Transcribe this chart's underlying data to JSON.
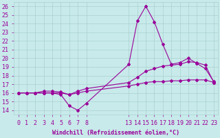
{
  "background_color": "#c8eaea",
  "grid_color": "#aad0d0",
  "line_color": "#990099",
  "xlabel": "Windchill (Refroidissement éolien,°C)",
  "ylim": [
    13.5,
    26.5
  ],
  "xlim": [
    -0.5,
    23.5
  ],
  "yticks": [
    14,
    15,
    16,
    17,
    18,
    19,
    20,
    21,
    22,
    23,
    24,
    25,
    26
  ],
  "xticks": [
    0,
    1,
    2,
    3,
    4,
    5,
    6,
    7,
    8,
    13,
    14,
    15,
    16,
    17,
    18,
    19,
    20,
    21,
    22,
    23
  ],
  "line1_x": [
    0,
    1,
    2,
    3,
    4,
    5,
    6,
    7,
    8,
    13,
    14,
    15,
    16,
    17,
    18,
    19,
    20,
    21,
    22,
    23
  ],
  "line1_y": [
    16.0,
    16.0,
    16.0,
    16.0,
    16.0,
    15.8,
    14.5,
    14.0,
    14.8,
    19.3,
    24.3,
    26.0,
    24.2,
    21.6,
    19.3,
    19.5,
    20.0,
    19.4,
    18.8,
    17.3
  ],
  "line2_x": [
    0,
    1,
    2,
    3,
    4,
    5,
    6,
    7,
    8,
    13,
    14,
    15,
    16,
    17,
    18,
    19,
    20,
    21,
    22,
    23
  ],
  "line2_y": [
    16.0,
    16.0,
    16.0,
    16.2,
    16.2,
    16.1,
    15.8,
    16.2,
    16.5,
    17.2,
    17.8,
    18.5,
    18.8,
    19.1,
    19.2,
    19.3,
    19.6,
    19.5,
    19.2,
    17.2
  ],
  "line3_x": [
    0,
    1,
    2,
    3,
    4,
    5,
    6,
    7,
    8,
    13,
    14,
    15,
    16,
    17,
    18,
    19,
    20,
    21,
    22,
    23
  ],
  "line3_y": [
    16.0,
    16.0,
    16.0,
    16.0,
    16.0,
    16.0,
    15.8,
    16.0,
    16.2,
    16.8,
    17.0,
    17.2,
    17.3,
    17.3,
    17.4,
    17.4,
    17.5,
    17.5,
    17.5,
    17.2
  ],
  "marker": "D",
  "marker_size": 2.0,
  "line_width": 0.8,
  "font_size": 6
}
